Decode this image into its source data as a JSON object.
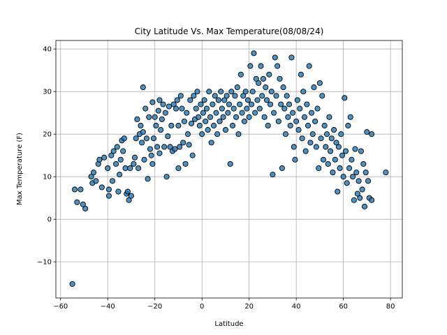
{
  "chart_data": {
    "type": "scatter",
    "title": "City Latitude Vs. Max Temperature(08/08/24)",
    "xlabel": "Latitude",
    "ylabel": "Max Temperature (F)",
    "xlim": [
      -62,
      85
    ],
    "ylim": [
      -18.5,
      42
    ],
    "xticks": [
      -60,
      -40,
      -20,
      0,
      20,
      40,
      60,
      80
    ],
    "yticks": [
      -10,
      0,
      10,
      20,
      30,
      40
    ],
    "grid": true,
    "point_color": "#1f77b4",
    "edge_color": "#000000",
    "points": [
      [
        -55,
        -15.2
      ],
      [
        -54,
        7
      ],
      [
        -53,
        4
      ],
      [
        -51.5,
        7
      ],
      [
        -50.5,
        3.5
      ],
      [
        -49.5,
        2.5
      ],
      [
        -47,
        10
      ],
      [
        -46.5,
        8.5
      ],
      [
        -46,
        11
      ],
      [
        -45,
        9
      ],
      [
        -44,
        13
      ],
      [
        -43.5,
        14
      ],
      [
        -42.5,
        7.5
      ],
      [
        -41.5,
        14.5
      ],
      [
        -40,
        12
      ],
      [
        -39.5,
        7
      ],
      [
        -39.5,
        5.5
      ],
      [
        -38.5,
        15
      ],
      [
        -38,
        9
      ],
      [
        -37.5,
        16
      ],
      [
        -36.5,
        13
      ],
      [
        -36,
        17
      ],
      [
        -35.5,
        6.5
      ],
      [
        -35,
        10.5
      ],
      [
        -34.5,
        14
      ],
      [
        -34,
        18.5
      ],
      [
        -33.5,
        16
      ],
      [
        -33,
        19
      ],
      [
        -32.5,
        12
      ],
      [
        -32,
        6
      ],
      [
        -31.5,
        6.5
      ],
      [
        -31,
        4.5
      ],
      [
        -30.5,
        12
      ],
      [
        -30,
        5.5
      ],
      [
        -29,
        13
      ],
      [
        -28.5,
        14.5
      ],
      [
        -28,
        19
      ],
      [
        -27.5,
        23.5
      ],
      [
        -27,
        12
      ],
      [
        -26.5,
        20
      ],
      [
        -26,
        22
      ],
      [
        -25.5,
        18
      ],
      [
        -25,
        31
      ],
      [
        -25,
        20.5
      ],
      [
        -24.5,
        14
      ],
      [
        -24,
        26
      ],
      [
        -23.5,
        19
      ],
      [
        -23,
        9.5
      ],
      [
        -22.5,
        24
      ],
      [
        -22,
        16.5
      ],
      [
        -21.5,
        15
      ],
      [
        -21,
        13
      ],
      [
        -21,
        27.5
      ],
      [
        -20.5,
        19
      ],
      [
        -20,
        24
      ],
      [
        -19.5,
        22
      ],
      [
        -19,
        17
      ],
      [
        -18.5,
        25.5
      ],
      [
        -18,
        28
      ],
      [
        -18,
        15.5
      ],
      [
        -17.5,
        21
      ],
      [
        -17,
        23.5
      ],
      [
        -16.5,
        27
      ],
      [
        -16,
        17
      ],
      [
        -15.5,
        25
      ],
      [
        -15,
        10
      ],
      [
        -14.5,
        19.5
      ],
      [
        -14,
        26.5
      ],
      [
        -13.5,
        17
      ],
      [
        -13,
        22
      ],
      [
        -12.5,
        16
      ],
      [
        -12,
        27
      ],
      [
        -11.5,
        16.5
      ],
      [
        -11,
        26
      ],
      [
        -10.5,
        28
      ],
      [
        -10,
        22
      ],
      [
        -10,
        12
      ],
      [
        -9.5,
        17
      ],
      [
        -9,
        29
      ],
      [
        -8.5,
        26
      ],
      [
        -8,
        18
      ],
      [
        -7.5,
        23
      ],
      [
        -7,
        13
      ],
      [
        -6.5,
        25
      ],
      [
        -6,
        20
      ],
      [
        -5.5,
        17.5
      ],
      [
        -5,
        28
      ],
      [
        -4.5,
        22.5
      ],
      [
        -4,
        15
      ],
      [
        -3.5,
        29
      ],
      [
        -3,
        23.5
      ],
      [
        -2.5,
        26
      ],
      [
        -2,
        30
      ],
      [
        -1.5,
        24
      ],
      [
        -1,
        22
      ],
      [
        -0.5,
        27
      ],
      [
        0,
        20
      ],
      [
        0.5,
        25
      ],
      [
        1,
        28
      ],
      [
        1.5,
        23
      ],
      [
        2,
        26
      ],
      [
        2.5,
        21
      ],
      [
        3,
        30
      ],
      [
        3.5,
        24
      ],
      [
        4,
        18
      ],
      [
        4.5,
        27
      ],
      [
        5,
        22
      ],
      [
        5.5,
        29
      ],
      [
        6,
        25
      ],
      [
        6.5,
        20
      ],
      [
        7,
        28
      ],
      [
        7.5,
        23
      ],
      [
        8,
        30
      ],
      [
        8.5,
        26
      ],
      [
        9,
        24
      ],
      [
        9.5,
        28
      ],
      [
        10,
        21
      ],
      [
        10.5,
        29
      ],
      [
        11,
        25
      ],
      [
        11.5,
        27
      ],
      [
        12,
        13
      ],
      [
        12.5,
        30
      ],
      [
        13,
        22
      ],
      [
        13.5,
        26
      ],
      [
        14,
        29
      ],
      [
        14.5,
        24
      ],
      [
        15,
        31
      ],
      [
        15.5,
        20
      ],
      [
        16,
        27
      ],
      [
        16.5,
        34
      ],
      [
        17,
        25
      ],
      [
        17.5,
        29
      ],
      [
        18,
        23
      ],
      [
        18.5,
        30
      ],
      [
        19,
        26
      ],
      [
        19.5,
        28
      ],
      [
        20,
        24
      ],
      [
        20.5,
        36
      ],
      [
        21,
        27
      ],
      [
        21.5,
        30
      ],
      [
        22,
        39
      ],
      [
        22.5,
        25
      ],
      [
        23,
        33
      ],
      [
        23.5,
        28
      ],
      [
        24,
        32
      ],
      [
        24.5,
        26
      ],
      [
        25,
        36
      ],
      [
        25.5,
        29
      ],
      [
        26,
        33
      ],
      [
        26.5,
        24
      ],
      [
        27,
        31
      ],
      [
        27.5,
        28
      ],
      [
        28,
        22
      ],
      [
        28.5,
        34
      ],
      [
        29,
        27
      ],
      [
        29.5,
        30
      ],
      [
        30,
        10.5
      ],
      [
        30.5,
        25
      ],
      [
        31,
        38
      ],
      [
        31.5,
        29
      ],
      [
        32,
        36
      ],
      [
        32.5,
        23
      ],
      [
        33,
        33
      ],
      [
        33.5,
        27
      ],
      [
        34,
        12
      ],
      [
        34.5,
        31
      ],
      [
        35,
        26
      ],
      [
        35.5,
        20
      ],
      [
        36,
        29
      ],
      [
        36.5,
        24
      ],
      [
        37,
        27
      ],
      [
        37.5,
        22
      ],
      [
        38,
        38
      ],
      [
        38.5,
        25
      ],
      [
        39,
        17
      ],
      [
        39.5,
        14
      ],
      [
        40,
        23
      ],
      [
        40.5,
        28
      ],
      [
        41,
        21
      ],
      [
        41.5,
        26
      ],
      [
        42,
        34
      ],
      [
        42.5,
        19
      ],
      [
        43,
        30
      ],
      [
        43.5,
        24
      ],
      [
        44,
        16
      ],
      [
        44.5,
        27
      ],
      [
        45,
        22
      ],
      [
        45.5,
        36
      ],
      [
        46,
        18
      ],
      [
        46.5,
        25
      ],
      [
        47,
        20
      ],
      [
        47.5,
        31
      ],
      [
        48,
        23
      ],
      [
        48.5,
        17
      ],
      [
        49,
        26
      ],
      [
        49.5,
        12
      ],
      [
        50,
        32
      ],
      [
        50.5,
        19
      ],
      [
        51,
        29
      ],
      [
        51.5,
        14
      ],
      [
        52,
        22
      ],
      [
        52.5,
        17
      ],
      [
        53,
        20
      ],
      [
        53.5,
        13
      ],
      [
        54,
        24
      ],
      [
        54.5,
        16
      ],
      [
        55,
        19
      ],
      [
        55.5,
        11
      ],
      [
        56,
        21
      ],
      [
        56.5,
        14
      ],
      [
        57,
        18
      ],
      [
        57.5,
        6.5
      ],
      [
        58,
        17
      ],
      [
        58.5,
        12
      ],
      [
        59,
        20
      ],
      [
        59.5,
        15
      ],
      [
        60,
        10
      ],
      [
        60.5,
        28.5
      ],
      [
        61,
        16
      ],
      [
        61.5,
        8.5
      ],
      [
        62,
        22
      ],
      [
        62.5,
        12
      ],
      [
        63,
        24
      ],
      [
        63.5,
        14
      ],
      [
        64,
        10
      ],
      [
        64.5,
        4.5
      ],
      [
        65,
        16.5
      ],
      [
        65.5,
        11
      ],
      [
        66,
        6
      ],
      [
        66.5,
        9
      ],
      [
        67,
        5
      ],
      [
        67.5,
        16
      ],
      [
        68,
        7
      ],
      [
        68.5,
        13
      ],
      [
        69,
        3
      ],
      [
        69.5,
        11
      ],
      [
        70,
        20.5
      ],
      [
        70.5,
        9
      ],
      [
        71,
        5
      ],
      [
        72,
        4.5
      ],
      [
        72,
        20
      ],
      [
        78,
        11
      ]
    ]
  }
}
